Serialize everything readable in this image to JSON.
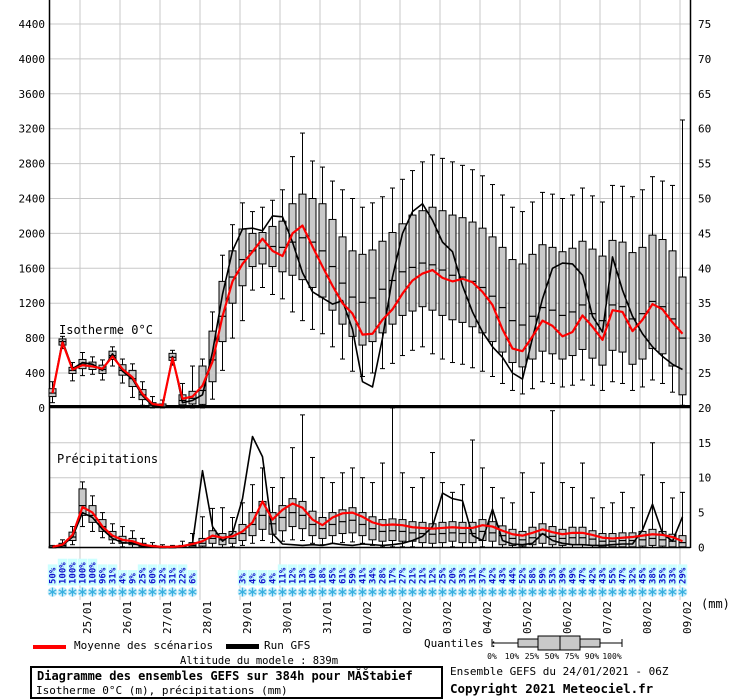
{
  "colors": {
    "mean_line": "#ff0000",
    "gfs_line": "#000000",
    "box_fill": "#c9c9c9",
    "grid": "#c8c8c8",
    "snow_text": "#1111cc",
    "snow_highlight": "#ccffff",
    "flake_stroke": "#38b0e0",
    "flake_fill": "#c9edfa"
  },
  "chart": {
    "panel1_label": "Isotherme 0°C",
    "panel2_label": "Précipitations",
    "right_unit_label": "(mm)",
    "left_axis_ticks": [
      "0",
      "400",
      "800",
      "1200",
      "1600",
      "2000",
      "2400",
      "2800",
      "3200",
      "3600",
      "4000",
      "4400"
    ],
    "right_axis_ticks": [
      "0",
      "5",
      "10",
      "15",
      "20",
      "25",
      "30",
      "35",
      "40",
      "45",
      "50",
      "55",
      "60",
      "65",
      "70",
      "75"
    ],
    "dates": [
      "25/01",
      "26/01",
      "27/01",
      "28/01",
      "29/01",
      "30/01",
      "31/01",
      "01/02",
      "02/02",
      "03/02",
      "04/02",
      "05/02",
      "06/02",
      "07/02",
      "08/02",
      "09/02"
    ]
  },
  "chart_data": {
    "type": "ensemble box-whisker + line, two stacked panels",
    "timestep_hours": 6,
    "isotherm": {
      "ylabel": "Isotherme 0°C (m)",
      "ylim": [
        0,
        4400
      ],
      "median": [
        170,
        760,
        430,
        500,
        480,
        440,
        600,
        430,
        335,
        150,
        30,
        20,
        580,
        85,
        110,
        200,
        550,
        1050,
        1500,
        1700,
        1800,
        1830,
        1850,
        1840,
        1900,
        1950,
        1900,
        1800,
        1620,
        1430,
        1270,
        1210,
        1260,
        1360,
        1460,
        1560,
        1610,
        1660,
        1640,
        1580,
        1520,
        1500,
        1450,
        1380,
        1280,
        1150,
        1000,
        950,
        1050,
        1150,
        1120,
        1060,
        1100,
        1180,
        1080,
        1000,
        1180,
        1160,
        1020,
        1080,
        1220,
        1160,
        1020,
        800
      ],
      "q1": [
        130,
        720,
        395,
        450,
        440,
        395,
        555,
        375,
        245,
        95,
        10,
        5,
        545,
        35,
        45,
        40,
        300,
        760,
        1200,
        1400,
        1620,
        1650,
        1620,
        1560,
        1520,
        1470,
        1380,
        1270,
        1120,
        960,
        820,
        720,
        760,
        860,
        960,
        1060,
        1110,
        1160,
        1120,
        1060,
        1010,
        980,
        930,
        860,
        760,
        640,
        520,
        470,
        560,
        650,
        620,
        560,
        600,
        670,
        570,
        490,
        660,
        640,
        500,
        560,
        680,
        620,
        480,
        150
      ],
      "q3": [
        220,
        790,
        465,
        555,
        525,
        490,
        650,
        495,
        430,
        210,
        60,
        45,
        625,
        150,
        190,
        480,
        880,
        1450,
        1800,
        2050,
        2000,
        2010,
        2080,
        2140,
        2340,
        2450,
        2400,
        2340,
        2160,
        1960,
        1800,
        1760,
        1810,
        1910,
        2010,
        2110,
        2210,
        2260,
        2300,
        2260,
        2210,
        2180,
        2130,
        2060,
        1960,
        1840,
        1700,
        1650,
        1760,
        1870,
        1840,
        1790,
        1830,
        1910,
        1820,
        1740,
        1920,
        1900,
        1780,
        1840,
        1980,
        1930,
        1800,
        1500
      ],
      "lo": [
        60,
        680,
        310,
        370,
        385,
        320,
        480,
        285,
        120,
        30,
        0,
        0,
        490,
        0,
        0,
        0,
        100,
        430,
        800,
        1000,
        1350,
        1380,
        1300,
        1250,
        1100,
        1000,
        900,
        850,
        700,
        560,
        420,
        360,
        400,
        450,
        510,
        600,
        660,
        700,
        620,
        560,
        520,
        500,
        460,
        420,
        360,
        280,
        200,
        160,
        220,
        300,
        280,
        240,
        260,
        320,
        260,
        200,
        300,
        280,
        200,
        240,
        320,
        280,
        180,
        30
      ],
      "hi": [
        300,
        820,
        520,
        635,
        585,
        550,
        700,
        560,
        505,
        300,
        130,
        90,
        660,
        280,
        480,
        560,
        1100,
        1750,
        2100,
        2350,
        2250,
        2300,
        2380,
        2500,
        2880,
        3150,
        2830,
        2760,
        2600,
        2500,
        2400,
        2300,
        2350,
        2420,
        2520,
        2620,
        2720,
        2820,
        2900,
        2860,
        2820,
        2780,
        2730,
        2660,
        2560,
        2440,
        2300,
        2250,
        2360,
        2470,
        2450,
        2400,
        2440,
        2520,
        2430,
        2360,
        2550,
        2540,
        2420,
        2500,
        2650,
        2600,
        2550,
        3300
      ],
      "mean": [
        170,
        750,
        440,
        490,
        475,
        450,
        590,
        445,
        350,
        160,
        45,
        30,
        570,
        105,
        130,
        255,
        530,
        1050,
        1450,
        1650,
        1790,
        1940,
        1800,
        1740,
        2000,
        2090,
        1850,
        1620,
        1400,
        1200,
        1080,
        840,
        850,
        1010,
        1130,
        1310,
        1460,
        1540,
        1580,
        1490,
        1450,
        1480,
        1440,
        1330,
        1180,
        900,
        680,
        650,
        820,
        1000,
        940,
        820,
        870,
        1060,
        930,
        780,
        1120,
        1100,
        880,
        1010,
        1190,
        1130,
        980,
        850
      ],
      "gfs": [
        170,
        770,
        450,
        520,
        500,
        430,
        620,
        420,
        330,
        140,
        25,
        10,
        590,
        60,
        85,
        150,
        640,
        1300,
        1800,
        2050,
        2060,
        2030,
        2200,
        2190,
        1900,
        1550,
        1330,
        1260,
        1190,
        1230,
        900,
        300,
        240,
        800,
        1500,
        2000,
        2250,
        2340,
        2150,
        1900,
        1790,
        1400,
        1100,
        870,
        700,
        580,
        400,
        330,
        800,
        1250,
        1600,
        1660,
        1650,
        1520,
        1050,
        870,
        1730,
        1350,
        1050,
        850,
        700,
        590,
        500,
        440
      ]
    },
    "precipitation": {
      "ylabel": "précipitations (mm)",
      "ylim": [
        0,
        20
      ],
      "median": [
        0,
        0.3,
        1.5,
        6,
        4.6,
        3,
        1.6,
        1,
        0.7,
        0.3,
        0.1,
        0,
        0,
        0.1,
        0.3,
        0.6,
        1.3,
        1.1,
        1.3,
        2,
        3.3,
        4.6,
        3.4,
        4.3,
        5,
        4.6,
        3.3,
        2.7,
        3.3,
        3.7,
        3.9,
        3.3,
        2.7,
        2.3,
        2.4,
        2.3,
        2.1,
        2,
        1.9,
        2,
        2.1,
        2,
        2,
        2.3,
        2.1,
        1.7,
        1.3,
        1.1,
        1.4,
        1.9,
        1.6,
        1.3,
        1.4,
        1.4,
        1.2,
        0.9,
        0.9,
        1,
        1,
        1.1,
        1.3,
        1.1,
        0.9,
        0.7
      ],
      "q1": [
        0,
        0.1,
        1,
        4.6,
        3.6,
        2.3,
        1.1,
        0.6,
        0.4,
        0.1,
        0,
        0,
        0,
        0,
        0.1,
        0.2,
        0.6,
        0.4,
        0.6,
        1,
        1.7,
        2.6,
        1.9,
        2.4,
        3,
        2.7,
        1.7,
        1.3,
        1.7,
        2,
        2.1,
        1.7,
        1.1,
        0.9,
        1,
        0.9,
        0.9,
        0.7,
        0.6,
        0.7,
        0.9,
        0.7,
        0.7,
        1,
        0.9,
        0.4,
        0.3,
        0.2,
        0.4,
        0.6,
        0.4,
        0.3,
        0.4,
        0.4,
        0.3,
        0.1,
        0.1,
        0.1,
        0.1,
        0.2,
        0.3,
        0.2,
        0.1,
        0.1
      ],
      "q3": [
        0.1,
        0.6,
        2.2,
        8.4,
        6,
        4,
        2.3,
        1.6,
        1.3,
        0.6,
        0.3,
        0.1,
        0.1,
        0.3,
        0.7,
        1.3,
        2.4,
        2,
        2.3,
        3.3,
        5,
        6.6,
        5,
        6,
        7,
        6.6,
        5.2,
        4.3,
        5,
        5.4,
        5.7,
        5,
        4.4,
        4,
        4.1,
        4,
        3.7,
        3.6,
        3.4,
        3.6,
        3.7,
        3.6,
        3.6,
        4,
        3.7,
        3.1,
        2.6,
        2.3,
        2.9,
        3.4,
        3,
        2.6,
        2.9,
        2.9,
        2.4,
        2,
        2,
        2.1,
        2.1,
        2.3,
        2.6,
        2.3,
        1.9,
        1.7
      ],
      "lo": [
        0,
        0,
        0.4,
        3,
        2.3,
        1.4,
        0.6,
        0.1,
        0,
        0,
        0,
        0,
        0,
        0,
        0,
        0,
        0,
        0,
        0.1,
        0.3,
        0.6,
        1,
        0.7,
        0.9,
        1.1,
        1,
        0.6,
        0.4,
        0.6,
        0.7,
        0.8,
        0.6,
        0.3,
        0.1,
        0.1,
        0.1,
        0.1,
        0,
        0,
        0,
        0.1,
        0,
        0,
        0.1,
        0,
        0,
        0,
        0,
        0,
        0,
        0,
        0,
        0,
        0,
        0,
        0,
        0,
        0,
        0,
        0,
        0,
        0,
        0,
        0
      ],
      "hi": [
        0.3,
        1.1,
        3,
        9.4,
        7.4,
        5,
        3.4,
        3,
        2.4,
        1.3,
        0.7,
        0.4,
        0.3,
        0.9,
        2,
        4.4,
        5.6,
        5.7,
        4.3,
        6.4,
        9,
        11.4,
        8.6,
        10,
        14.3,
        19,
        12.9,
        10,
        9.3,
        10.7,
        11.4,
        10,
        9.3,
        12.1,
        20,
        10.7,
        8.6,
        10,
        13.6,
        9.3,
        7.9,
        9,
        15.4,
        11.4,
        8.6,
        7.1,
        6.4,
        10.7,
        7.9,
        12.1,
        19.6,
        9.3,
        8.6,
        12.1,
        7.1,
        5.7,
        6.4,
        7.9,
        5.7,
        10.4,
        15,
        9.3,
        7.1,
        7.9
      ],
      "mean": [
        0.1,
        0.4,
        1.8,
        5.8,
        5,
        3,
        1.7,
        1.1,
        0.9,
        0.4,
        0.2,
        0.1,
        0.1,
        0.2,
        0.5,
        0.9,
        1.7,
        1.4,
        1.6,
        2.3,
        3.6,
        6.6,
        4,
        5.4,
        6.3,
        5.7,
        4,
        3.2,
        4.3,
        4.9,
        5,
        4.4,
        3.6,
        3.2,
        3.3,
        3.2,
        2.9,
        2.8,
        2.7,
        2.8,
        2.9,
        2.8,
        2.8,
        3.2,
        3,
        2.4,
        1.9,
        1.7,
        2.1,
        2.6,
        2.2,
        1.9,
        2.1,
        2.1,
        1.8,
        1.4,
        1.3,
        1.4,
        1.5,
        1.7,
        1.9,
        1.8,
        1.5,
        0.9
      ],
      "gfs": [
        0,
        0.3,
        1.5,
        5,
        4.3,
        2.6,
        1.3,
        0.7,
        0.6,
        0.2,
        0.1,
        0,
        0,
        0.1,
        0.6,
        11,
        3,
        0.9,
        2,
        7,
        15.9,
        13,
        2,
        0.5,
        0.4,
        0.3,
        0.4,
        0.3,
        0.6,
        0.4,
        0.3,
        0.5,
        0.4,
        0.3,
        0.4,
        0.6,
        1,
        1.6,
        3,
        7.8,
        7,
        6.7,
        1.7,
        1,
        5.5,
        1,
        0.5,
        0.4,
        0.6,
        2,
        1,
        0.6,
        0.4,
        0.4,
        0.3,
        0.3,
        0.4,
        0.5,
        0.5,
        2.5,
        6.2,
        2,
        0.9,
        4.4
      ]
    },
    "snow_probability_pct": [
      50,
      100,
      100,
      100,
      100,
      96,
      31,
      4,
      9,
      25,
      60,
      32,
      31,
      22,
      6,
      null,
      null,
      null,
      null,
      3,
      4,
      6,
      4,
      11,
      12,
      13,
      10,
      18,
      45,
      61,
      59,
      41,
      34,
      28,
      17,
      27,
      21,
      21,
      12,
      25,
      20,
      33,
      31,
      37,
      42,
      43,
      44,
      52,
      58,
      59,
      53,
      39,
      49,
      47,
      42,
      43,
      55,
      47,
      32,
      45,
      38,
      35,
      33,
      29
    ]
  },
  "legend": {
    "mean_label": "Moyenne des scénarios",
    "gfs_label": "Run GFS",
    "altitude_label": "Altitude du modele : 839m"
  },
  "quantiles": {
    "label": "Quantiles :",
    "ticks": [
      "0%",
      "10%",
      "25%",
      "50%",
      "75%",
      "90%",
      "100%"
    ]
  },
  "footer_left": {
    "title": "Diagramme des ensembles GEFS sur 384h pour MĂŠtabief",
    "subtitle": "Isotherme 0°C (m), précipitations (mm)"
  },
  "footer_right": {
    "run_info": "Ensemble GEFS du 24/01/2021 - 06Z",
    "copyright": "Copyright 2021 Meteociel.fr"
  }
}
